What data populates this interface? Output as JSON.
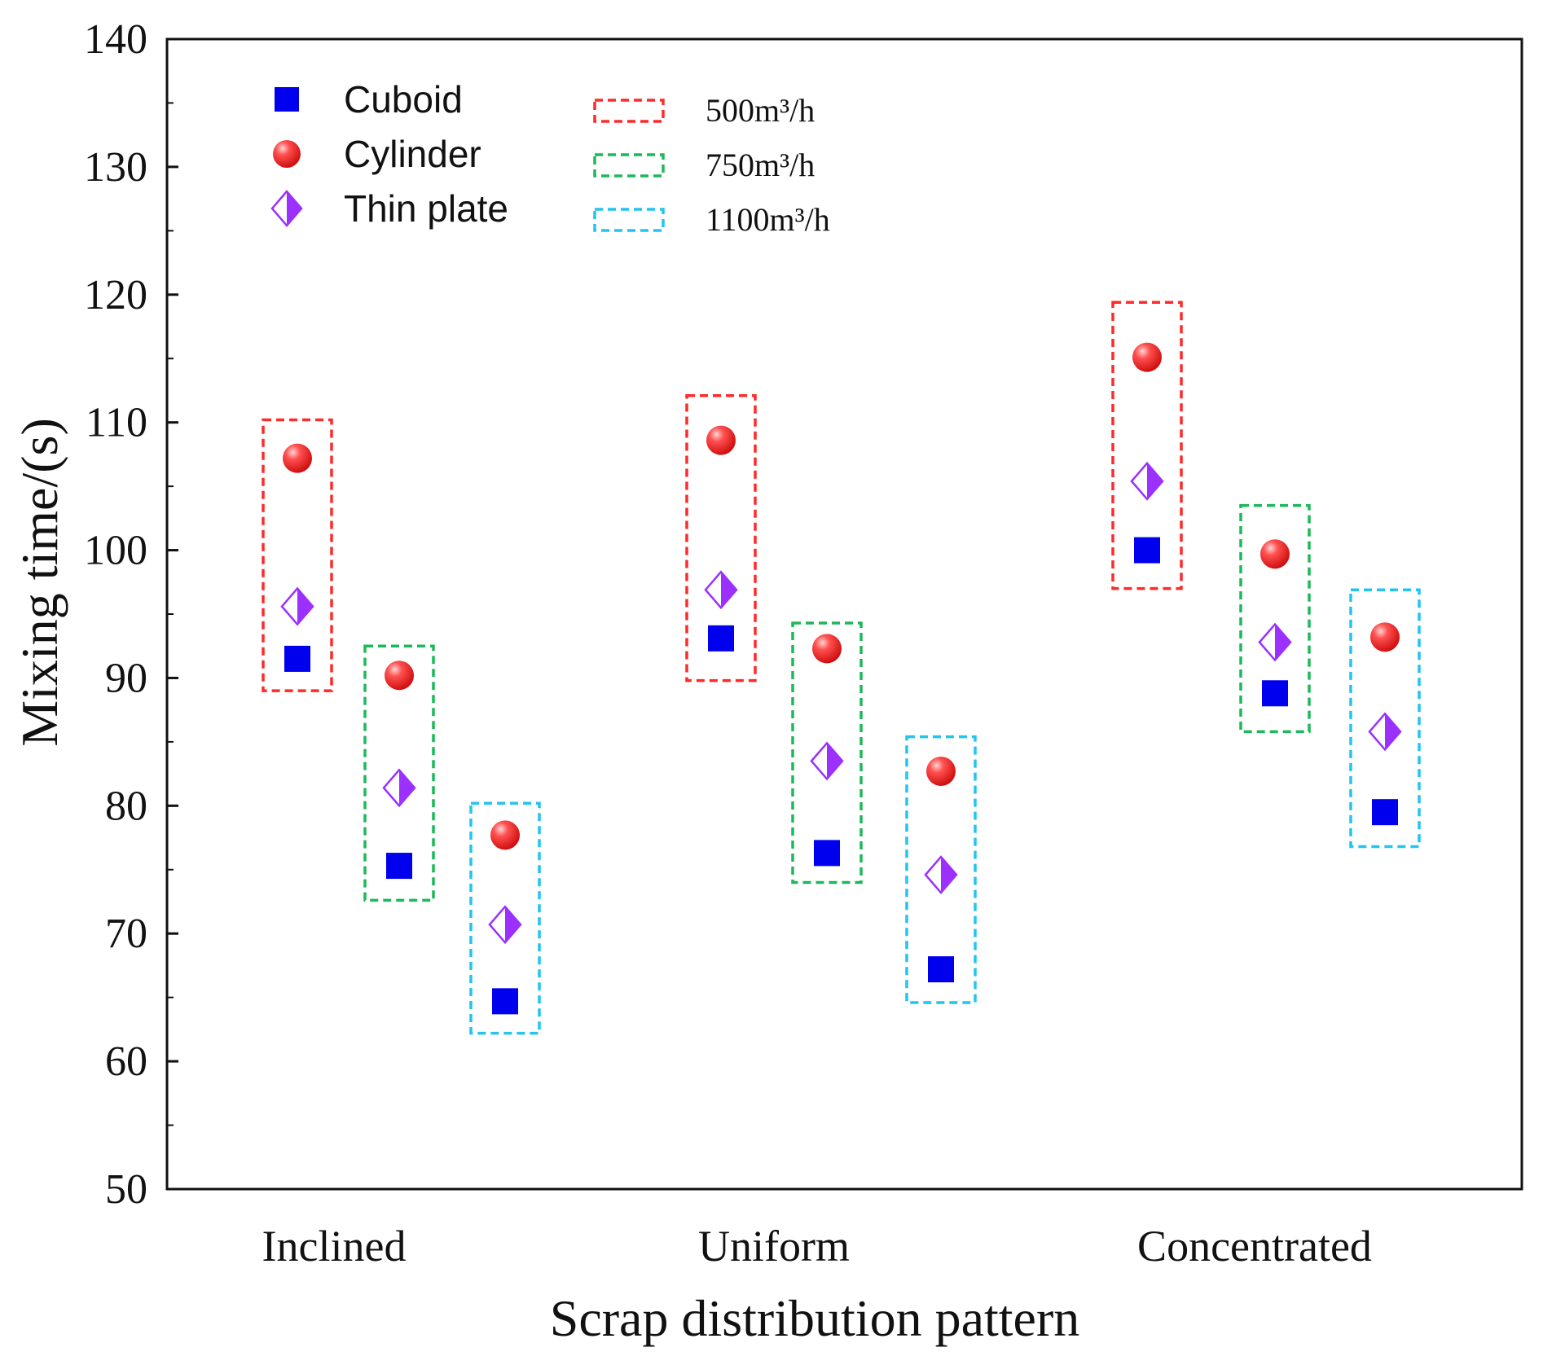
{
  "chart_data": {
    "type": "scatter",
    "title": "",
    "xlabel": "Scrap distribution pattern",
    "ylabel": "Mixing time/(s)",
    "ylim": [
      50,
      140
    ],
    "yticks": [
      50,
      60,
      70,
      80,
      90,
      100,
      110,
      120,
      130,
      140
    ],
    "categories": [
      "Inclined",
      "Uniform",
      "Concentrated"
    ],
    "flow_rates": [
      {
        "label": "500m³/h",
        "color": "#ff2a2a"
      },
      {
        "label": "750m³/h",
        "color": "#1db85a"
      },
      {
        "label": "1100m³/h",
        "color": "#22c4f0"
      }
    ],
    "series": [
      {
        "name": "Cuboid",
        "marker": "square",
        "color": "#0000ee",
        "values": [
          [
            91.5,
            75.3,
            64.7
          ],
          [
            93.1,
            76.3,
            67.2
          ],
          [
            100.0,
            88.8,
            79.5
          ]
        ]
      },
      {
        "name": "Cylinder",
        "marker": "circle",
        "color": "#ff2d2d",
        "values": [
          [
            107.2,
            90.2,
            77.7
          ],
          [
            108.6,
            92.3,
            82.7
          ],
          [
            115.1,
            99.7,
            93.2
          ]
        ]
      },
      {
        "name": "Thin plate",
        "marker": "half-diamond",
        "color": "#9b30ff",
        "values": [
          [
            95.6,
            81.4,
            70.7
          ],
          [
            96.9,
            83.5,
            74.6
          ],
          [
            105.4,
            92.8,
            85.8
          ]
        ]
      }
    ],
    "box_ranges": [
      [
        [
          89.0,
          110.2
        ],
        [
          72.6,
          92.5
        ],
        [
          62.2,
          80.2
        ]
      ],
      [
        [
          89.8,
          112.1
        ],
        [
          74.0,
          94.3
        ],
        [
          64.6,
          85.4
        ]
      ],
      [
        [
          97.0,
          119.4
        ],
        [
          85.8,
          103.5
        ],
        [
          76.8,
          96.9
        ]
      ]
    ],
    "legend_position": "top-left",
    "grid": false
  }
}
